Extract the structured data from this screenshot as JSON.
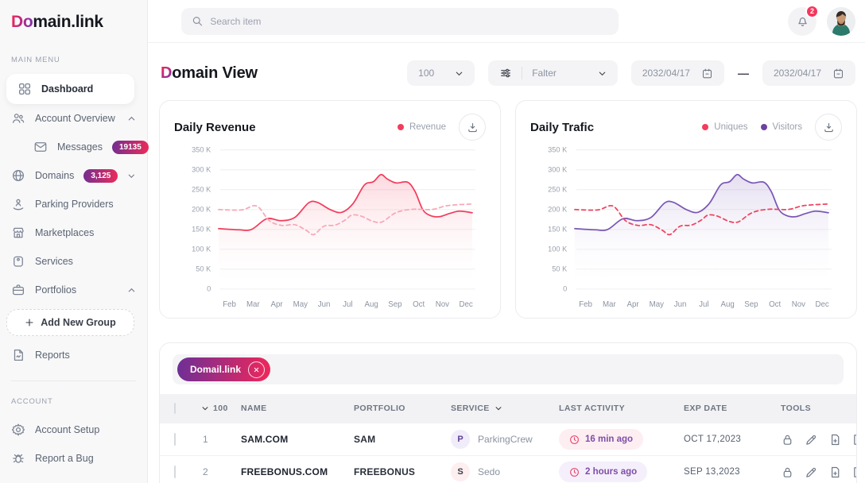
{
  "brand": {
    "logo_accent": "Do",
    "logo_rest": "main.link"
  },
  "topbar": {
    "search_placeholder": "Search item",
    "notification_count": "2"
  },
  "sidebar": {
    "main_menu_label": "MAIN MENU",
    "account_label": "ACCOUNT",
    "items": {
      "dashboard": "Dashboard",
      "account_overview": "Account Overview",
      "messages": "Messages",
      "messages_badge": "19135",
      "domains": "Domains",
      "domains_badge": "3,125",
      "parking_providers": "Parking Providers",
      "marketplaces": "Marketplaces",
      "services": "Services",
      "portfolios": "Portfolios",
      "add_new_group": "Add New Group",
      "reports": "Reports",
      "account_setup": "Account Setup",
      "report_a_bug": "Report a Bug"
    }
  },
  "page": {
    "title_accent": "D",
    "title_rest": "omain View"
  },
  "controls": {
    "page_size": "100",
    "filter_label": "Falter",
    "date_from": "2032/04/17",
    "date_dash": "—",
    "date_to": "2032/04/17"
  },
  "chart_data": [
    {
      "type": "area",
      "title": "Daily Revenue",
      "ylim": [
        0,
        350
      ],
      "yticks": [
        {
          "v": 350,
          "label": "350 K"
        },
        {
          "v": 300,
          "label": "300 K"
        },
        {
          "v": 250,
          "label": "250 K"
        },
        {
          "v": 200,
          "label": "200 K"
        },
        {
          "v": 150,
          "label": "150 K"
        },
        {
          "v": 100,
          "label": "100 K"
        },
        {
          "v": 50,
          "label": "50 K"
        },
        {
          "v": 0,
          "label": "0"
        }
      ],
      "x_labels": [
        "Feb",
        "Mar",
        "Apr",
        "May",
        "Jun",
        "Jul",
        "Aug",
        "Sep",
        "Oct",
        "Nov",
        "Dec"
      ],
      "legend": [
        {
          "name": "Revenue",
          "color": "#f23d5c"
        }
      ],
      "series": [
        {
          "name": "Revenue",
          "color": "#f23d5c",
          "dash": false,
          "fill": true,
          "fill_from": "rgba(242,61,92,0.20)",
          "points": [
            [
              0,
              152
            ],
            [
              0.08,
              149
            ],
            [
              0.13,
              150
            ],
            [
              0.19,
              177
            ],
            [
              0.245,
              172
            ],
            [
              0.3,
              180
            ],
            [
              0.355,
              217
            ],
            [
              0.39,
              218
            ],
            [
              0.44,
              200
            ],
            [
              0.485,
              193
            ],
            [
              0.53,
              215
            ],
            [
              0.575,
              262
            ],
            [
              0.61,
              270
            ],
            [
              0.64,
              288
            ],
            [
              0.665,
              277
            ],
            [
              0.7,
              267
            ],
            [
              0.745,
              269
            ],
            [
              0.775,
              245
            ],
            [
              0.805,
              200
            ],
            [
              0.835,
              185
            ],
            [
              0.87,
              182
            ],
            [
              0.91,
              190
            ],
            [
              0.95,
              196
            ],
            [
              1,
              192
            ]
          ]
        },
        {
          "name": "Revenue comparison (dashed)",
          "color": "#f7a8b8",
          "dash": true,
          "fill": false,
          "points": [
            [
              0,
              200
            ],
            [
              0.09,
              199
            ],
            [
              0.15,
              209
            ],
            [
              0.2,
              172
            ],
            [
              0.25,
              160
            ],
            [
              0.3,
              162
            ],
            [
              0.345,
              148
            ],
            [
              0.375,
              137
            ],
            [
              0.415,
              158
            ],
            [
              0.46,
              161
            ],
            [
              0.5,
              174
            ],
            [
              0.525,
              186
            ],
            [
              0.56,
              184
            ],
            [
              0.61,
              170
            ],
            [
              0.645,
              169
            ],
            [
              0.69,
              189
            ],
            [
              0.73,
              198
            ],
            [
              0.775,
              201
            ],
            [
              0.815,
              200
            ],
            [
              0.85,
              201
            ],
            [
              0.895,
              209
            ],
            [
              0.94,
              212
            ],
            [
              1,
              214
            ]
          ]
        }
      ]
    },
    {
      "type": "area",
      "title": "Daily Trafic",
      "ylim": [
        0,
        350
      ],
      "yticks": [
        {
          "v": 350,
          "label": "350 K"
        },
        {
          "v": 300,
          "label": "300 K"
        },
        {
          "v": 250,
          "label": "250 K"
        },
        {
          "v": 200,
          "label": "200 K"
        },
        {
          "v": 150,
          "label": "150 K"
        },
        {
          "v": 100,
          "label": "100 K"
        },
        {
          "v": 50,
          "label": "50 K"
        },
        {
          "v": 0,
          "label": "0"
        }
      ],
      "x_labels": [
        "Feb",
        "Mar",
        "Apr",
        "May",
        "Jun",
        "Jul",
        "Aug",
        "Sep",
        "Oct",
        "Nov",
        "Dec"
      ],
      "legend": [
        {
          "name": "Uniques",
          "color": "#f23d5c"
        },
        {
          "name": "Visitors",
          "color": "#6d43a1"
        }
      ],
      "series": [
        {
          "name": "Visitors",
          "color": "#7a57b5",
          "dash": false,
          "fill": true,
          "fill_from": "rgba(122,87,181,0.20)",
          "points": [
            [
              0,
              152
            ],
            [
              0.08,
              149
            ],
            [
              0.13,
              150
            ],
            [
              0.19,
              177
            ],
            [
              0.245,
              172
            ],
            [
              0.3,
              180
            ],
            [
              0.355,
              217
            ],
            [
              0.39,
              218
            ],
            [
              0.44,
              200
            ],
            [
              0.485,
              193
            ],
            [
              0.53,
              215
            ],
            [
              0.575,
              262
            ],
            [
              0.61,
              270
            ],
            [
              0.64,
              288
            ],
            [
              0.665,
              277
            ],
            [
              0.7,
              267
            ],
            [
              0.745,
              269
            ],
            [
              0.775,
              245
            ],
            [
              0.805,
              200
            ],
            [
              0.835,
              185
            ],
            [
              0.87,
              182
            ],
            [
              0.91,
              190
            ],
            [
              0.95,
              196
            ],
            [
              1,
              192
            ]
          ]
        },
        {
          "name": "Uniques",
          "color": "#f0435f",
          "dash": true,
          "fill": false,
          "points": [
            [
              0,
              200
            ],
            [
              0.09,
              199
            ],
            [
              0.15,
              209
            ],
            [
              0.2,
              172
            ],
            [
              0.25,
              160
            ],
            [
              0.3,
              162
            ],
            [
              0.345,
              148
            ],
            [
              0.375,
              137
            ],
            [
              0.415,
              158
            ],
            [
              0.46,
              161
            ],
            [
              0.5,
              174
            ],
            [
              0.525,
              186
            ],
            [
              0.56,
              184
            ],
            [
              0.61,
              170
            ],
            [
              0.645,
              169
            ],
            [
              0.69,
              189
            ],
            [
              0.73,
              198
            ],
            [
              0.775,
              201
            ],
            [
              0.815,
              200
            ],
            [
              0.85,
              201
            ],
            [
              0.895,
              209
            ],
            [
              0.94,
              212
            ],
            [
              1,
              214
            ]
          ]
        }
      ]
    }
  ],
  "table": {
    "filter_chip": "Domail.link",
    "header": {
      "count": "100",
      "name": "NAME",
      "portfolio": "PORTFOLIO",
      "service": "SERVICE",
      "last_activity": "LAST ACTIVITY",
      "exp_date": "EXP DATE",
      "tools": "TOOLS"
    },
    "rows": [
      {
        "num": "1",
        "name": "SAM.COM",
        "portfolio": "SAM",
        "service_initial": "P",
        "service": "ParkingCrew",
        "service_tone": "purple",
        "last_activity": "16 min ago",
        "activity_tone": "pink",
        "exp_date": "OCT 17,2023"
      },
      {
        "num": "2",
        "name": "FREEBONUS.COM",
        "portfolio": "FREEBONUS",
        "service_initial": "S",
        "service": "Sedo",
        "service_tone": "pink",
        "last_activity": "2 hours ago",
        "activity_tone": "purple",
        "exp_date": "SEP 13,2023"
      }
    ]
  }
}
